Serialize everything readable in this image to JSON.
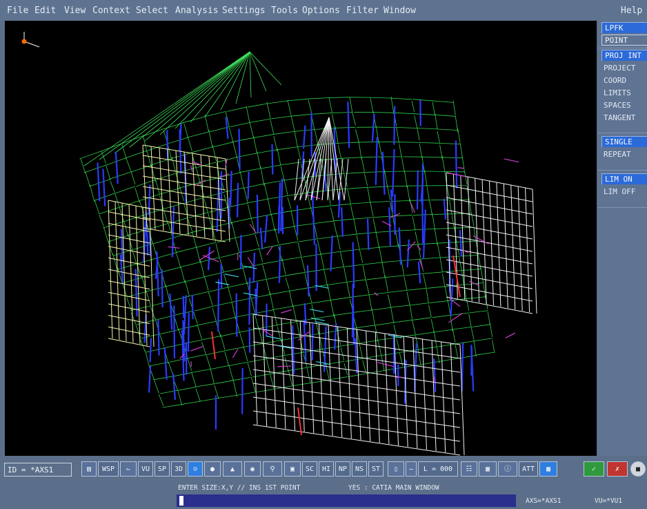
{
  "menu": {
    "items": [
      "File",
      "Edit",
      "View",
      "Context",
      "Select",
      "Analysis",
      "Settings",
      "Tools",
      "Options",
      "Filter",
      "Window"
    ],
    "help": "Help"
  },
  "right_panel": {
    "mode_buttons": [
      "LPFK",
      "POINT"
    ],
    "proj_button": "PROJ INT",
    "proj_items": [
      "PROJECT",
      "COORD",
      "LIMITS",
      "SPACES",
      "TANGENT"
    ],
    "single_button": "SINGLE",
    "single_items": [
      "REPEAT"
    ],
    "lim_button": "LIM ON",
    "lim_items": [
      "LIM OFF"
    ]
  },
  "toolbar": {
    "id_label": "ID = *AXS1",
    "buttons": [
      "WSP",
      "VU",
      "SP",
      "3D",
      "SC",
      "HI",
      "NP",
      "NS",
      "ST",
      "L = 000",
      "ATT"
    ],
    "icon_names": [
      "layer-icon",
      "axis-icon",
      "exit-icon",
      "sphere-icon",
      "plane-icon",
      "render-icon",
      "zoom-icon",
      "frame-icon",
      "cylinder-icon",
      "dash-icon",
      "tree-icon",
      "grid-icon",
      "info-icon",
      "screen-icon",
      "yes-icon",
      "no-icon",
      "stop-icon"
    ]
  },
  "status": {
    "prompt": "ENTER SIZE:X,Y // INS 1ST POINT",
    "message": "YES : CATIA MAIN WINDOW",
    "axis": "AXS=*AXS1",
    "view": "VU=*VU1"
  },
  "colors": {
    "menubar": "#5e7390",
    "viewport_bg": "#000000",
    "command_line": "#2a2e8c",
    "panel_selected": "#2b6ad8"
  }
}
